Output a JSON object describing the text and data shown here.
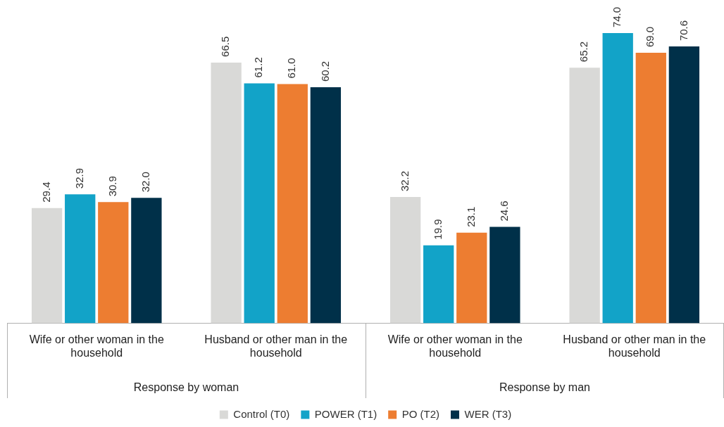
{
  "chart_data": {
    "type": "bar",
    "categories": [
      "Wife or other woman in the household",
      "Husband or other man in the household",
      "Wife or other woman in the household",
      "Husband or other man in the household"
    ],
    "series": [
      {
        "name": "Control (T0)",
        "color": "#d9d9d7",
        "values": [
          29.4,
          66.5,
          32.2,
          65.2
        ],
        "value_labels": [
          "29.4",
          "66.5",
          "32.2",
          "65.2"
        ]
      },
      {
        "name": "POWER (T1)",
        "color": "#12a3c8",
        "values": [
          32.9,
          61.2,
          19.9,
          74
        ],
        "value_labels": [
          "32.9",
          "61.2",
          "19.9",
          "74.0"
        ]
      },
      {
        "name": "PO (T2)",
        "color": "#ed7d31",
        "values": [
          30.9,
          61,
          23.1,
          69
        ],
        "value_labels": [
          "30.9",
          "61.0",
          "23.1",
          "69.0"
        ]
      },
      {
        "name": "WER (T3)",
        "color": "#003049",
        "values": [
          32,
          60.2,
          24.6,
          70.6
        ],
        "value_labels": [
          "32.0",
          "60.2",
          "24.6",
          "70.6"
        ]
      }
    ],
    "annotations": [
      "Response by woman",
      "Response by man"
    ],
    "grid": false,
    "legend": "bottom"
  }
}
